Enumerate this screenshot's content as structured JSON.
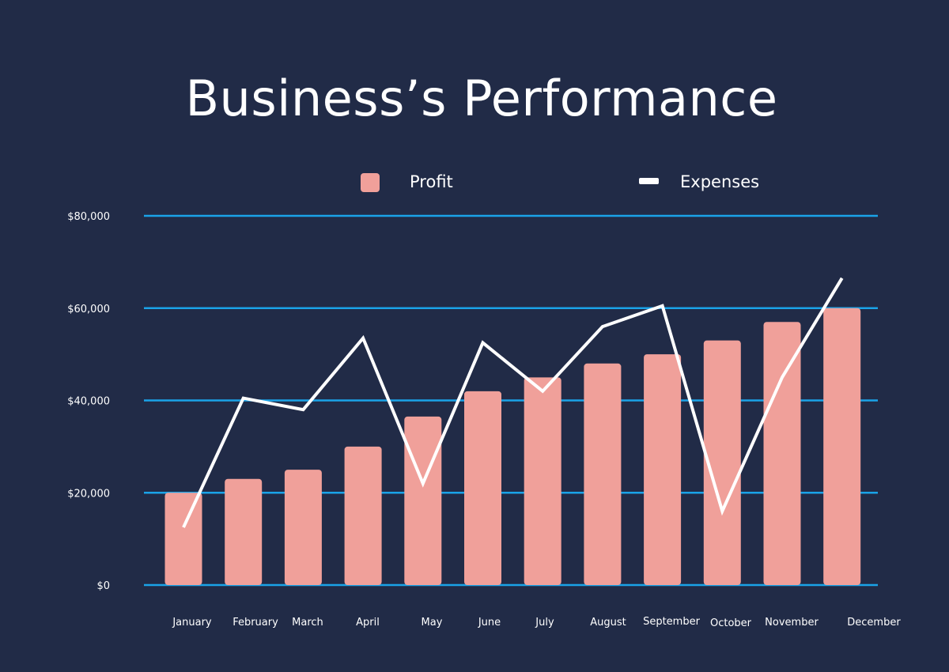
{
  "chart_data": {
    "type": "bar",
    "title": "Business’s Performance",
    "xlabel": "",
    "ylabel": "",
    "ylim": [
      0,
      80000
    ],
    "yticks": [
      0,
      20000,
      40000,
      60000,
      80000
    ],
    "ytick_labels": [
      "$0",
      "$20,000",
      "$40,000",
      "$60,000",
      "$80,000"
    ],
    "grid": true,
    "legend_position": "top",
    "categories": [
      "January",
      "February",
      "March",
      "April",
      "May",
      "June",
      "July",
      "August",
      "September",
      "October",
      "November",
      "December"
    ],
    "series": [
      {
        "name": "Profit",
        "type": "bar",
        "color": "#f0a09a",
        "values": [
          20000,
          23000,
          25000,
          30000,
          36500,
          42000,
          45000,
          48000,
          50000,
          53000,
          57000,
          60000
        ]
      },
      {
        "name": "Expenses",
        "type": "line",
        "color": "#ffffff",
        "values": [
          12500,
          40500,
          38000,
          53500,
          22000,
          52500,
          42000,
          56000,
          60500,
          16000,
          45000,
          66500
        ]
      }
    ],
    "colors": {
      "background": "#212b47",
      "gridline": "#1aa3e8"
    }
  }
}
